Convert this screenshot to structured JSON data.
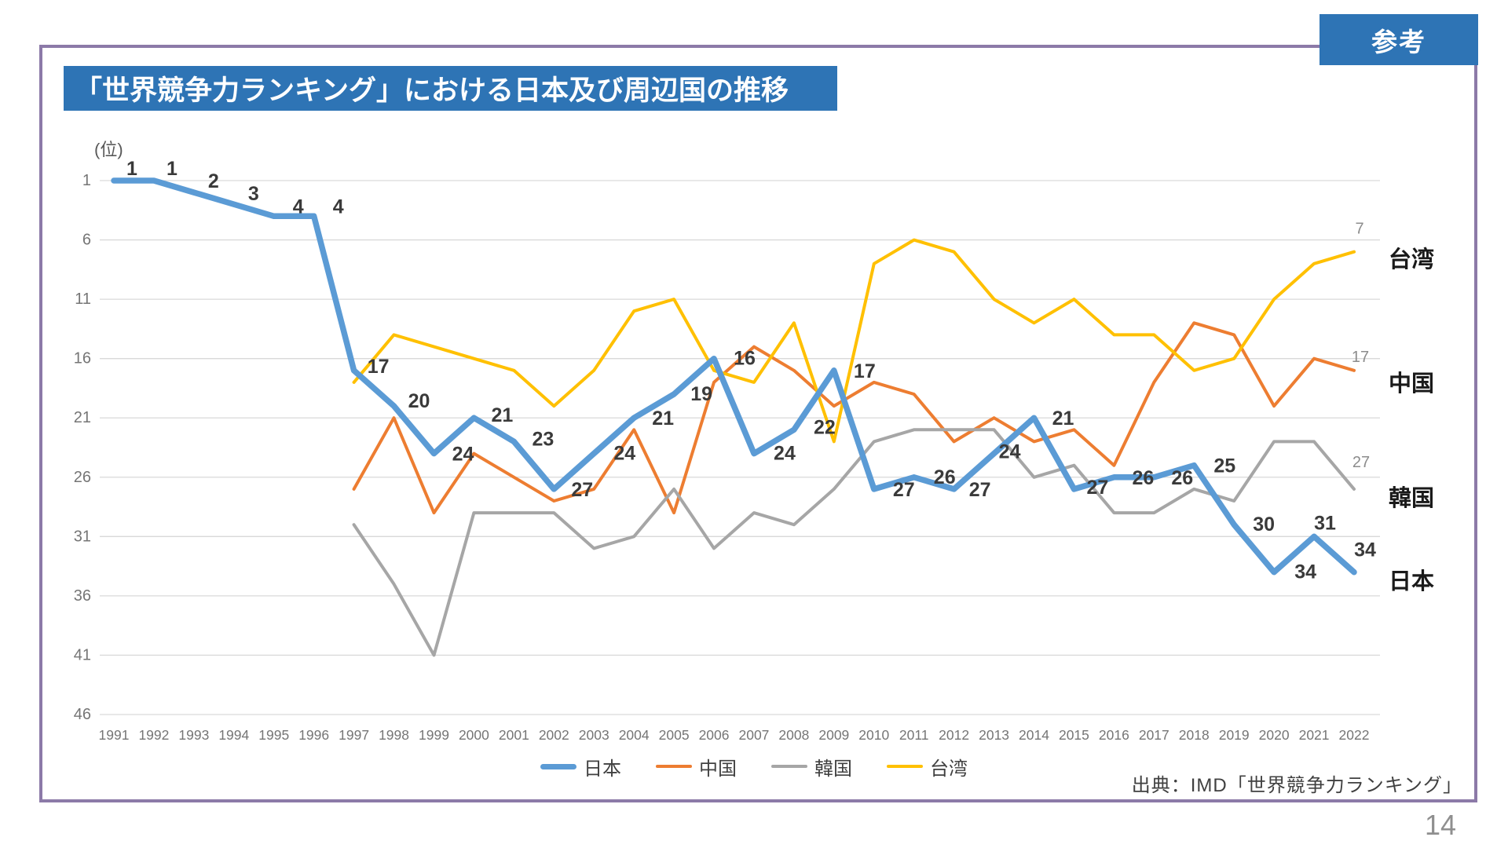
{
  "page": {
    "badge": "参考",
    "title": "「世界競争力ランキング」における日本及び周辺国の推移",
    "unit_label": "(位)",
    "source": "出典：IMD「世界競争力ランキング」",
    "page_number": "14"
  },
  "colors": {
    "title_bar": "#2E74B5",
    "badge_bg": "#2E74B5",
    "frame_border": "#8C7AA8",
    "gridline": "#D9D9D9",
    "axis_text": "#757575",
    "data_label": "#3A3A3A",
    "end_label": "#8C8C8C",
    "series_name": "#1a1a1a"
  },
  "legend": [
    {
      "label": "日本",
      "color": "#5B9BD5",
      "thickness": 7
    },
    {
      "label": "中国",
      "color": "#ED7D31",
      "thickness": 4
    },
    {
      "label": "韓国",
      "color": "#A6A6A6",
      "thickness": 4
    },
    {
      "label": "台湾",
      "color": "#FFC000",
      "thickness": 4
    }
  ],
  "chart_data": {
    "type": "line",
    "title": "「世界競争力ランキング」における日本及び周辺国の推移",
    "xlabel": "",
    "ylabel": "(位)",
    "y_axis_inverted": true,
    "y_axis_ticks": [
      1,
      6,
      11,
      16,
      21,
      26,
      31,
      36,
      41,
      46
    ],
    "ylim": [
      1,
      46
    ],
    "grid": "horizontal",
    "legend_position": "bottom",
    "x": [
      1991,
      1992,
      1993,
      1994,
      1995,
      1996,
      1997,
      1998,
      1999,
      2000,
      2001,
      2002,
      2003,
      2004,
      2005,
      2006,
      2007,
      2008,
      2009,
      2010,
      2011,
      2012,
      2013,
      2014,
      2015,
      2016,
      2017,
      2018,
      2019,
      2020,
      2021,
      2022
    ],
    "series": [
      {
        "name": "中国",
        "color": "#ED7D31",
        "stroke_width": 4,
        "end_label": "17",
        "values": [
          null,
          null,
          null,
          null,
          null,
          null,
          27,
          21,
          29,
          24,
          26,
          28,
          27,
          22,
          29,
          18,
          15,
          17,
          20,
          18,
          19,
          23,
          21,
          23,
          22,
          25,
          18,
          13,
          14,
          20,
          16,
          17
        ]
      },
      {
        "name": "韓国",
        "color": "#A6A6A6",
        "stroke_width": 4,
        "end_label": "27",
        "values": [
          null,
          null,
          null,
          null,
          null,
          null,
          30,
          35,
          41,
          29,
          29,
          29,
          32,
          31,
          27,
          32,
          29,
          30,
          27,
          23,
          22,
          22,
          22,
          26,
          25,
          29,
          29,
          27,
          28,
          23,
          23,
          27
        ]
      },
      {
        "name": "台湾",
        "color": "#FFC000",
        "stroke_width": 4,
        "end_label": "7",
        "values": [
          null,
          null,
          null,
          null,
          null,
          null,
          18,
          14,
          15,
          16,
          17,
          20,
          17,
          12,
          11,
          17,
          18,
          13,
          23,
          8,
          6,
          7,
          11,
          13,
          11,
          14,
          14,
          17,
          16,
          11,
          8,
          7
        ]
      },
      {
        "name": "日本",
        "color": "#5B9BD5",
        "stroke_width": 7.5,
        "end_label": null,
        "labeled": true,
        "values": [
          1,
          1,
          2,
          3,
          4,
          4,
          17,
          20,
          24,
          21,
          23,
          27,
          24,
          21,
          19,
          16,
          24,
          22,
          17,
          27,
          26,
          27,
          24,
          21,
          27,
          26,
          26,
          25,
          30,
          34,
          31,
          34
        ]
      }
    ]
  }
}
